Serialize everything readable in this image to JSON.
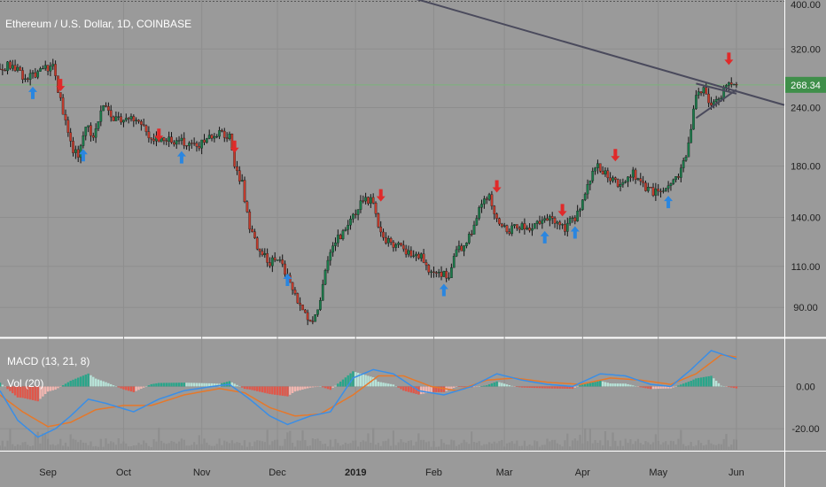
{
  "header": {
    "title": "Ethereum / U.S. Dollar, 1D, COINBASE"
  },
  "chart_data": [
    {
      "type": "candlestick",
      "title": "Ethereum / U.S. Dollar, 1D, COINBASE",
      "y_scale": "log",
      "ylim": [
        78,
        400
      ],
      "y_ticks": [
        400,
        320,
        240,
        180,
        140,
        110,
        90
      ],
      "y_tick_labels": [
        "400.00",
        "320.00",
        "240.00",
        "180.00",
        "140.00",
        "110.00",
        "90.00"
      ],
      "x_labels": [
        "Sep",
        "Oct",
        "Nov",
        "Dec",
        "2019",
        "Feb",
        "Mar",
        "Apr",
        "May",
        "Jun"
      ],
      "x_range": [
        "2018-08-13",
        "2019-06-20"
      ],
      "x_label_dates": [
        "2018-09-01",
        "2018-10-01",
        "2018-11-01",
        "2018-12-01",
        "2019-01-01",
        "2019-02-01",
        "2019-03-01",
        "2019-04-01",
        "2019-05-01",
        "2019-06-01"
      ],
      "current_price": 268.34,
      "current_price_label": "268.34",
      "close_path": [
        [
          "2018-08-13",
          290
        ],
        [
          "2018-08-18",
          298
        ],
        [
          "2018-08-22",
          278
        ],
        [
          "2018-08-26",
          282
        ],
        [
          "2018-08-30",
          290
        ],
        [
          "2018-09-03",
          292
        ],
        [
          "2018-09-07",
          232
        ],
        [
          "2018-09-11",
          195
        ],
        [
          "2018-09-13",
          190
        ],
        [
          "2018-09-16",
          220
        ],
        [
          "2018-09-19",
          210
        ],
        [
          "2018-09-23",
          240
        ],
        [
          "2018-09-28",
          225
        ],
        [
          "2018-10-03",
          228
        ],
        [
          "2018-10-08",
          225
        ],
        [
          "2018-10-11",
          205
        ],
        [
          "2018-10-15",
          205
        ],
        [
          "2018-10-20",
          204
        ],
        [
          "2018-10-25",
          203
        ],
        [
          "2018-10-30",
          197
        ],
        [
          "2018-11-04",
          208
        ],
        [
          "2018-11-08",
          213
        ],
        [
          "2018-11-12",
          208
        ],
        [
          "2018-11-14",
          178
        ],
        [
          "2018-11-17",
          165
        ],
        [
          "2018-11-20",
          132
        ],
        [
          "2018-11-24",
          118
        ],
        [
          "2018-11-28",
          112
        ],
        [
          "2018-12-02",
          115
        ],
        [
          "2018-12-06",
          100
        ],
        [
          "2018-12-10",
          90
        ],
        [
          "2018-12-15",
          84
        ],
        [
          "2018-12-18",
          92
        ],
        [
          "2018-12-22",
          120
        ],
        [
          "2018-12-26",
          128
        ],
        [
          "2018-12-31",
          140
        ],
        [
          "2019-01-04",
          152
        ],
        [
          "2019-01-08",
          153
        ],
        [
          "2019-01-10",
          135
        ],
        [
          "2019-01-13",
          125
        ],
        [
          "2019-01-17",
          122
        ],
        [
          "2019-01-22",
          118
        ],
        [
          "2019-01-27",
          115
        ],
        [
          "2019-01-31",
          107
        ],
        [
          "2019-02-04",
          106
        ],
        [
          "2019-02-07",
          105
        ],
        [
          "2019-02-09",
          118
        ],
        [
          "2019-02-14",
          122
        ],
        [
          "2019-02-19",
          145
        ],
        [
          "2019-02-23",
          156
        ],
        [
          "2019-02-26",
          137
        ],
        [
          "2019-03-02",
          131
        ],
        [
          "2019-03-07",
          134
        ],
        [
          "2019-03-12",
          133
        ],
        [
          "2019-03-17",
          140
        ],
        [
          "2019-03-21",
          138
        ],
        [
          "2019-03-25",
          133
        ],
        [
          "2019-03-30",
          142
        ],
        [
          "2019-04-03",
          165
        ],
        [
          "2019-04-07",
          180
        ],
        [
          "2019-04-12",
          168
        ],
        [
          "2019-04-16",
          165
        ],
        [
          "2019-04-21",
          174
        ],
        [
          "2019-04-25",
          163
        ],
        [
          "2019-04-29",
          158
        ],
        [
          "2019-05-04",
          160
        ],
        [
          "2019-05-09",
          170
        ],
        [
          "2019-05-12",
          190
        ],
        [
          "2019-05-14",
          215
        ],
        [
          "2019-05-16",
          255
        ],
        [
          "2019-05-19",
          262
        ],
        [
          "2019-05-22",
          245
        ],
        [
          "2019-05-25",
          250
        ],
        [
          "2019-05-28",
          268
        ],
        [
          "2019-05-31",
          265
        ],
        [
          "2019-06-01",
          268
        ]
      ],
      "trendlines": [
        {
          "from": [
            "2018-12-17",
            470
          ],
          "to": [
            "2019-06-20",
            243
          ]
        },
        {
          "from": [
            "2019-05-16",
            270
          ],
          "to": [
            "2019-06-01",
            257
          ]
        },
        {
          "from": [
            "2019-05-16",
            228
          ],
          "to": [
            "2019-06-01",
            262
          ]
        }
      ],
      "up_arrows": [
        [
          "2018-08-26",
          258
        ],
        [
          "2018-09-15",
          190
        ],
        [
          "2018-10-24",
          188
        ],
        [
          "2018-12-05",
          103
        ],
        [
          "2019-02-05",
          98
        ],
        [
          "2019-03-17",
          127
        ],
        [
          "2019-03-29",
          130
        ],
        [
          "2019-05-05",
          151
        ]
      ],
      "down_arrows": [
        [
          "2018-09-06",
          268
        ],
        [
          "2018-10-15",
          210
        ],
        [
          "2018-11-14",
          198
        ],
        [
          "2019-01-11",
          156
        ],
        [
          "2019-02-26",
          163
        ],
        [
          "2019-03-24",
          145
        ],
        [
          "2019-04-14",
          190
        ],
        [
          "2019-05-29",
          305
        ]
      ],
      "colors": {
        "up": "#1b7a4a",
        "down": "#c23b2c",
        "wick": "#111111",
        "trendline": "#4a4a5c",
        "price_line": "#7ab57a",
        "price_badge": "#3f8f4a",
        "up_arrow": "#2a86e0",
        "down_arrow": "#e02a2a"
      }
    },
    {
      "type": "macd",
      "label": "MACD (13, 21, 8)",
      "volume_label": "Vol (20)",
      "ylim": [
        -30,
        22
      ],
      "y_ticks": [
        0,
        -20
      ],
      "y_tick_labels": [
        "0.00",
        "-20.00"
      ],
      "macd_line": [
        [
          "2018-08-13",
          -2
        ],
        [
          "2018-08-20",
          -16
        ],
        [
          "2018-08-28",
          -24
        ],
        [
          "2018-09-04",
          -20
        ],
        [
          "2018-09-10",
          -14
        ],
        [
          "2018-09-17",
          -6
        ],
        [
          "2018-09-24",
          -8
        ],
        [
          "2018-10-05",
          -12
        ],
        [
          "2018-10-15",
          -6
        ],
        [
          "2018-10-25",
          -2
        ],
        [
          "2018-11-05",
          0
        ],
        [
          "2018-11-12",
          1
        ],
        [
          "2018-11-20",
          -6
        ],
        [
          "2018-11-28",
          -14
        ],
        [
          "2018-12-05",
          -18
        ],
        [
          "2018-12-14",
          -14
        ],
        [
          "2018-12-22",
          -12
        ],
        [
          "2018-12-31",
          4
        ],
        [
          "2019-01-08",
          8
        ],
        [
          "2019-01-16",
          6
        ],
        [
          "2019-01-26",
          -2
        ],
        [
          "2019-02-05",
          -4
        ],
        [
          "2019-02-16",
          0
        ],
        [
          "2019-02-26",
          6
        ],
        [
          "2019-03-08",
          3
        ],
        [
          "2019-03-18",
          1
        ],
        [
          "2019-03-28",
          0
        ],
        [
          "2019-04-08",
          6
        ],
        [
          "2019-04-18",
          5
        ],
        [
          "2019-04-28",
          1
        ],
        [
          "2019-05-06",
          0
        ],
        [
          "2019-05-14",
          8
        ],
        [
          "2019-05-22",
          17
        ],
        [
          "2019-06-01",
          13
        ]
      ],
      "signal_line": [
        [
          "2018-08-13",
          -4
        ],
        [
          "2018-08-22",
          -12
        ],
        [
          "2018-09-01",
          -19
        ],
        [
          "2018-09-10",
          -17
        ],
        [
          "2018-09-20",
          -11
        ],
        [
          "2018-10-01",
          -9
        ],
        [
          "2018-10-12",
          -9
        ],
        [
          "2018-10-25",
          -4
        ],
        [
          "2018-11-08",
          -1
        ],
        [
          "2018-11-18",
          -3
        ],
        [
          "2018-11-28",
          -10
        ],
        [
          "2018-12-08",
          -14
        ],
        [
          "2018-12-18",
          -13
        ],
        [
          "2018-12-31",
          -4
        ],
        [
          "2019-01-10",
          5
        ],
        [
          "2019-01-20",
          5
        ],
        [
          "2019-01-31",
          0
        ],
        [
          "2019-02-10",
          -2
        ],
        [
          "2019-02-22",
          3
        ],
        [
          "2019-03-05",
          4
        ],
        [
          "2019-03-18",
          2
        ],
        [
          "2019-03-31",
          1
        ],
        [
          "2019-04-12",
          4
        ],
        [
          "2019-04-24",
          3
        ],
        [
          "2019-05-06",
          1
        ],
        [
          "2019-05-16",
          6
        ],
        [
          "2019-05-26",
          15
        ],
        [
          "2019-06-01",
          14
        ]
      ],
      "colors": {
        "macd": "#3a8ee6",
        "signal": "#e6782a",
        "hist_pos": "#2aa58a",
        "hist_pos_light": "#b7e3d8",
        "hist_neg": "#e0574a",
        "hist_neg_light": "#f2b6b0",
        "volume": "#8a8a8a"
      }
    }
  ]
}
